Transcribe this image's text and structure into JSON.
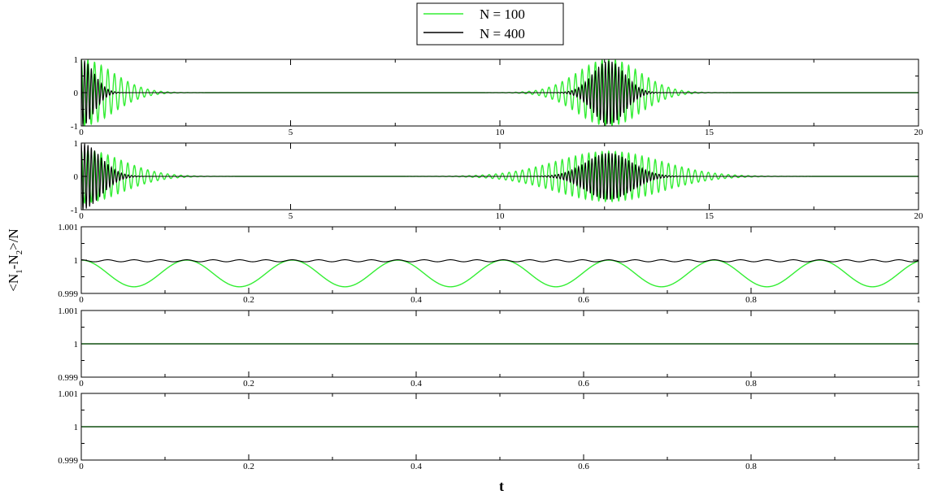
{
  "legend": {
    "placement": "top-center",
    "entries": [
      {
        "label": "N = 100",
        "color": "#33ee33"
      },
      {
        "label": "N = 400",
        "color": "#000000"
      }
    ]
  },
  "ylabel_parts": {
    "a": "<N",
    "b": "1",
    "c": "-N",
    "d": "2",
    "e": ">/N"
  },
  "xlabel": "t",
  "series_colors": {
    "N100": "#33ee33",
    "N400": "#000000"
  },
  "chart_data": [
    {
      "type": "line",
      "xlim": [
        0,
        20
      ],
      "ylim": [
        -1,
        1
      ],
      "xticks": [
        0,
        5,
        10,
        15,
        20
      ],
      "xtick_labels": [
        "0",
        "5",
        "10",
        "15",
        "20"
      ],
      "yticks": [
        -1,
        0,
        1
      ],
      "ytick_labels": [
        "-1",
        "0",
        "1"
      ],
      "series": [
        {
          "name": "N = 100",
          "kind": "packets",
          "freq": 6.3,
          "decay": 0.68,
          "packets": [
            {
              "center": 0,
              "amp": 1.0,
              "width": 0.75
            },
            {
              "center": 12.6,
              "amp": 1.0,
              "width": 0.75
            }
          ]
        },
        {
          "name": "N = 400",
          "kind": "packets",
          "freq": 12.5,
          "decay": 0.3,
          "packets": [
            {
              "center": 0,
              "amp": 1.0,
              "width": 0.3
            },
            {
              "center": 12.6,
              "amp": 0.95,
              "width": 0.38
            }
          ]
        }
      ]
    },
    {
      "type": "line",
      "xlim": [
        0,
        20
      ],
      "ylim": [
        -1,
        1
      ],
      "xticks": [
        0,
        5,
        10,
        15,
        20
      ],
      "xtick_labels": [
        "0",
        "5",
        "10",
        "15",
        "20"
      ],
      "yticks": [
        -1,
        0,
        1
      ],
      "ytick_labels": [
        "-1",
        "0",
        "1"
      ],
      "series": [
        {
          "name": "N = 100",
          "kind": "packets",
          "freq": 6.3,
          "decay": 1.0,
          "packets": [
            {
              "center": 0,
              "amp": 0.8,
              "width": 0.95
            },
            {
              "center": 12.6,
              "amp": 0.75,
              "width": 1.25
            }
          ]
        },
        {
          "name": "N = 400",
          "kind": "packets",
          "freq": 12.5,
          "decay": 0.5,
          "packets": [
            {
              "center": 0,
              "amp": 1.0,
              "width": 0.45
            },
            {
              "center": 12.6,
              "amp": 0.7,
              "width": 0.55
            }
          ]
        }
      ]
    },
    {
      "type": "line",
      "xlim": [
        0,
        1
      ],
      "ylim": [
        0.999,
        1.001
      ],
      "xticks": [
        0,
        0.2,
        0.4,
        0.6,
        0.8,
        1
      ],
      "xtick_labels": [
        "0",
        "0.2",
        "0.4",
        "0.6",
        "0.8",
        "1"
      ],
      "yticks": [
        0.999,
        1,
        1.001
      ],
      "ytick_labels": [
        "0.999",
        "1",
        "1.001"
      ],
      "series": [
        {
          "name": "N = 100",
          "kind": "cosine",
          "mean": 0.9996,
          "amp": 0.0004,
          "period": 0.126
        },
        {
          "name": "N = 400",
          "kind": "cosine",
          "mean": 0.99998,
          "amp": 3e-05,
          "period": 0.0315
        }
      ]
    },
    {
      "type": "line",
      "xlim": [
        0,
        1
      ],
      "ylim": [
        0.999,
        1.001
      ],
      "xticks": [
        0,
        0.2,
        0.4,
        0.6,
        0.8,
        1
      ],
      "xtick_labels": [
        "0",
        "0.2",
        "0.4",
        "0.6",
        "0.8",
        "1"
      ],
      "yticks": [
        0.999,
        1,
        1.001
      ],
      "ytick_labels": [
        "0.999",
        "1",
        "1.001"
      ],
      "series": [
        {
          "name": "N = 100",
          "kind": "constant",
          "value": 1
        },
        {
          "name": "N = 400",
          "kind": "constant",
          "value": 1
        }
      ]
    },
    {
      "type": "line",
      "xlim": [
        0,
        1
      ],
      "ylim": [
        0.999,
        1.001
      ],
      "xticks": [
        0,
        0.2,
        0.4,
        0.6,
        0.8,
        1
      ],
      "xtick_labels": [
        "0",
        "0.2",
        "0.4",
        "0.6",
        "0.8",
        "1"
      ],
      "yticks": [
        0.999,
        1,
        1.001
      ],
      "ytick_labels": [
        "0.999",
        "1",
        "1.001"
      ],
      "series": [
        {
          "name": "N = 100",
          "kind": "constant",
          "value": 1
        },
        {
          "name": "N = 400",
          "kind": "constant",
          "value": 1
        }
      ]
    }
  ]
}
